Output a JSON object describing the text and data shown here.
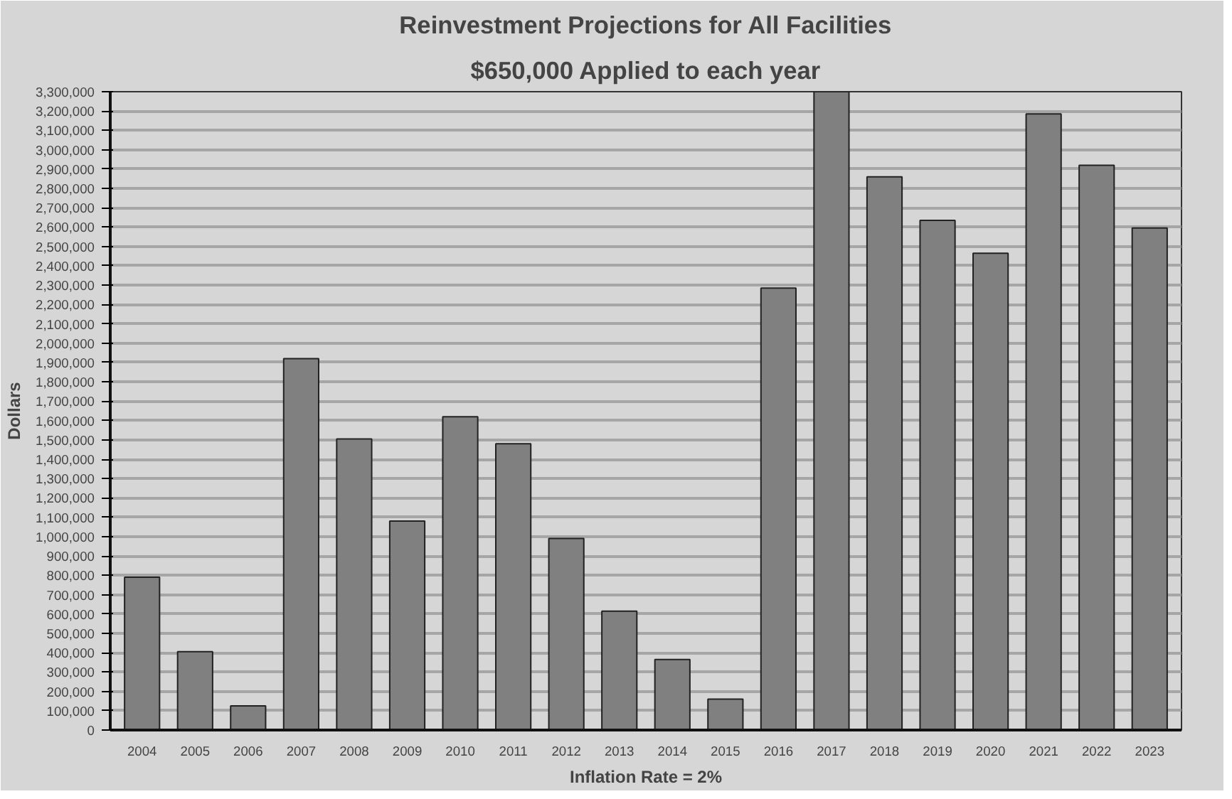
{
  "chart_data": {
    "type": "bar",
    "title": "Reinvestment Projections for All Facilities",
    "subtitle": "$650,000 Applied to each year",
    "xlabel": "Inflation Rate = 2%",
    "ylabel": "Dollars",
    "categories": [
      "2004",
      "2005",
      "2006",
      "2007",
      "2008",
      "2009",
      "2010",
      "2011",
      "2012",
      "2013",
      "2014",
      "2015",
      "2016",
      "2017",
      "2018",
      "2019",
      "2020",
      "2021",
      "2022",
      "2023"
    ],
    "values": [
      790000,
      405000,
      125000,
      1920000,
      1505000,
      1080000,
      1620000,
      1480000,
      990000,
      615000,
      365000,
      160000,
      2285000,
      3300000,
      2860000,
      2635000,
      2465000,
      3185000,
      2920000,
      2595000
    ],
    "color": "#808080",
    "ylim": [
      0,
      3300000
    ],
    "yticks": [
      0,
      {
        "value": 100000,
        "label": "100,000"
      },
      {
        "value": 200000,
        "label": "200,000"
      },
      {
        "value": 300000,
        "label": "300,000"
      },
      {
        "value": 400000,
        "label": "400,000"
      },
      {
        "value": 500000,
        "label": "500,000"
      },
      {
        "value": 600000,
        "label": "600,000"
      },
      {
        "value": 700000,
        "label": "700,000"
      },
      {
        "value": 800000,
        "label": "800,000"
      },
      {
        "value": 900000,
        "label": "900,000"
      },
      {
        "value": 1000000,
        "label": "1,000,000"
      },
      {
        "value": 1100000,
        "label": "1,100,000"
      },
      {
        "value": 1200000,
        "label": "1,200,000"
      },
      {
        "value": 1300000,
        "label": "1,300,000"
      },
      {
        "value": 1400000,
        "label": "1,400,000"
      },
      {
        "value": 1500000,
        "label": "1,500,000"
      },
      {
        "value": 1600000,
        "label": "1,600,000"
      },
      {
        "value": 1700000,
        "label": "1,700,000"
      },
      {
        "value": 1800000,
        "label": "1,800,000"
      },
      {
        "value": 1900000,
        "label": "1,900,000"
      },
      {
        "value": 2000000,
        "label": "2,000,000"
      },
      {
        "value": 2100000,
        "label": "2,100,000"
      },
      {
        "value": 2200000,
        "label": "2,200,000"
      },
      {
        "value": 2300000,
        "label": "2,300,000"
      },
      {
        "value": 2400000,
        "label": "2,400,000"
      },
      {
        "value": 2500000,
        "label": "2,500,000"
      },
      {
        "value": 2600000,
        "label": "2,600,000"
      },
      {
        "value": 2700000,
        "label": "2,700,000"
      },
      {
        "value": 2800000,
        "label": "2,800,000"
      },
      {
        "value": 2900000,
        "label": "2,900,000"
      },
      {
        "value": 3000000,
        "label": "3,000,000"
      },
      {
        "value": 3100000,
        "label": "3,100,000"
      },
      {
        "value": 3200000,
        "label": "3,200,000"
      },
      {
        "value": 3300000,
        "label": "3,300,000"
      }
    ],
    "grid": "y"
  }
}
